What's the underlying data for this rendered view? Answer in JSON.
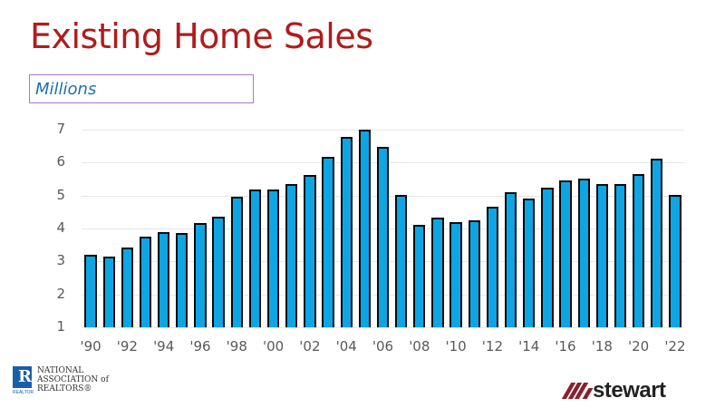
{
  "title": "Existing Home Sales",
  "unit_label": "Millions",
  "logos": {
    "nar": {
      "letter": "R",
      "sub": "REALTOR",
      "lines": [
        "NATIONAL",
        "ASSOCIATION of",
        "REALTORS®"
      ]
    },
    "stewart": {
      "word": "stewart"
    }
  },
  "colors": {
    "title": "#b01c1c",
    "bar": "#0ea5e4",
    "bar_border": "#0a0a0a",
    "unit": "#1f6fb5"
  },
  "chart_data": {
    "type": "bar",
    "title": "Existing Home Sales",
    "ylabel": "Millions",
    "xlabel": "",
    "ylim": [
      1,
      7
    ],
    "yticks": [
      1,
      2,
      3,
      4,
      5,
      6,
      7
    ],
    "grid": true,
    "categories": [
      "'90",
      "'91",
      "'92",
      "'93",
      "'94",
      "'95",
      "'96",
      "'97",
      "'98",
      "'99",
      "'00",
      "'01",
      "'02",
      "'03",
      "'04",
      "'05",
      "'06",
      "'07",
      "'08",
      "'09",
      "'10",
      "'11",
      "'12",
      "'13",
      "'14",
      "'15",
      "'16",
      "'17",
      "'18",
      "'19",
      "'20",
      "'21",
      "'22"
    ],
    "xtick_labels": [
      "'90",
      "'92",
      "'94",
      "'96",
      "'98",
      "'00",
      "'02",
      "'04",
      "'06",
      "'08",
      "'10",
      "'12",
      "'14",
      "'16",
      "'18",
      "'20",
      "'22"
    ],
    "values": [
      3.21,
      3.14,
      3.43,
      3.74,
      3.89,
      3.85,
      4.17,
      4.37,
      4.97,
      5.18,
      5.17,
      5.34,
      5.63,
      6.18,
      6.78,
      7.08,
      6.48,
      5.02,
      4.11,
      4.34,
      4.19,
      4.26,
      4.66,
      5.09,
      4.92,
      5.25,
      5.45,
      5.51,
      5.34,
      5.34,
      5.64,
      6.12,
      5.03
    ]
  }
}
